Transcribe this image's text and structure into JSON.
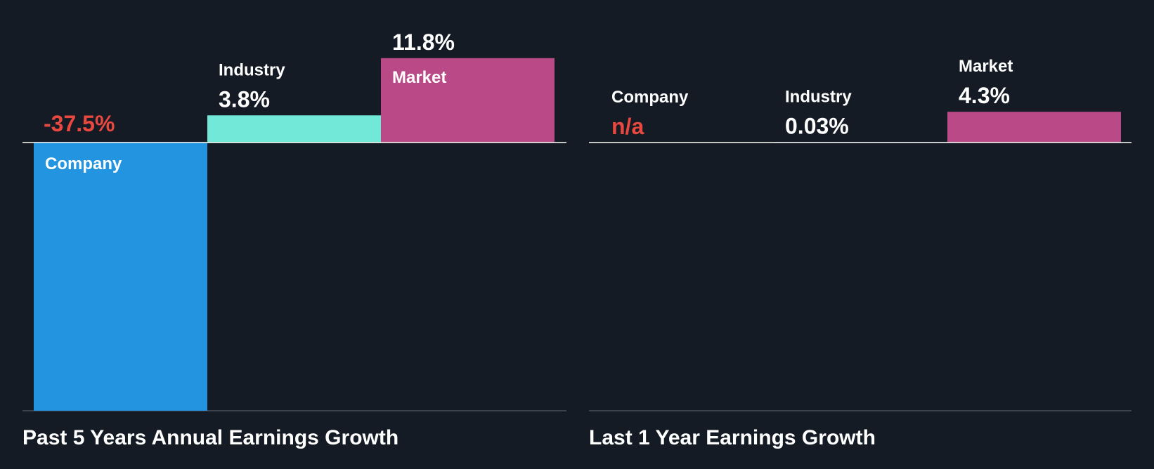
{
  "colors": {
    "background": "#151b24",
    "company": "#2394e0",
    "industry": "#72e8d8",
    "market": "#ba4a87",
    "negative_text": "#e8483f",
    "text": "#ffffff",
    "axis": "#ffffff",
    "baseline_bottom": "#4a505a"
  },
  "chart_data": [
    {
      "type": "bar",
      "title": "Past 5 Years Annual Earnings Growth",
      "unit": "%",
      "categories": [
        "Company",
        "Industry",
        "Market"
      ],
      "values": [
        -37.5,
        3.8,
        11.8
      ],
      "value_labels": [
        "-37.5%",
        "3.8%",
        "11.8%"
      ],
      "ylim": [
        -37.5,
        11.8
      ]
    },
    {
      "type": "bar",
      "title": "Last 1 Year Earnings Growth",
      "unit": "%",
      "categories": [
        "Company",
        "Industry",
        "Market"
      ],
      "values": [
        null,
        0.03,
        4.3
      ],
      "value_labels": [
        "n/a",
        "0.03%",
        "4.3%"
      ],
      "ylim": [
        -37.5,
        11.8
      ]
    }
  ]
}
